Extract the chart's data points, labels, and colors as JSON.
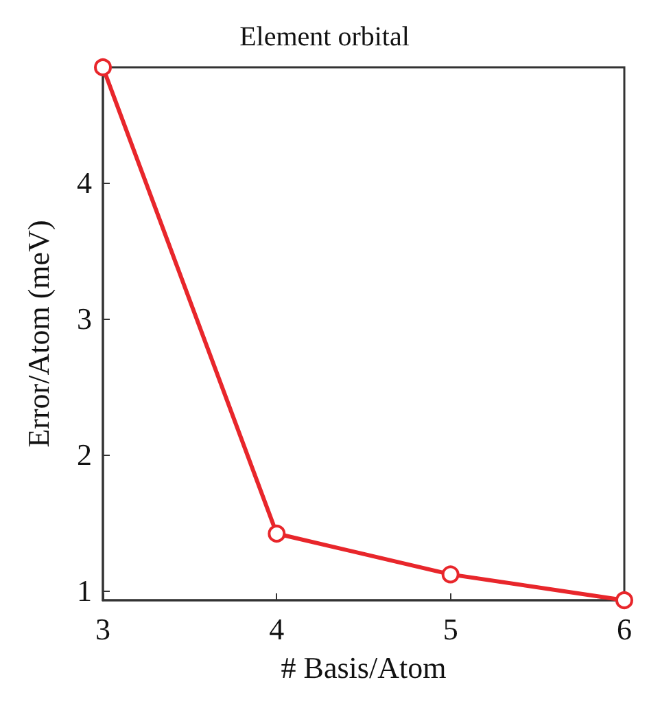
{
  "chart_data": {
    "type": "line",
    "title": "Element orbital",
    "xlabel": "# Basis/Atom",
    "ylabel": "Error/Atom (meV)",
    "x": [
      3,
      4,
      5,
      6
    ],
    "series": [
      {
        "color": "#e8262b",
        "values": [
          4.85,
          1.42,
          1.12,
          0.93
        ]
      }
    ],
    "xlim": [
      3,
      6
    ],
    "xticks": [
      3,
      4,
      5,
      6
    ],
    "ylim": [
      0.93,
      4.85
    ],
    "yticks": [
      1,
      2,
      3,
      4
    ],
    "marker": "circle",
    "line_style": "solid"
  }
}
